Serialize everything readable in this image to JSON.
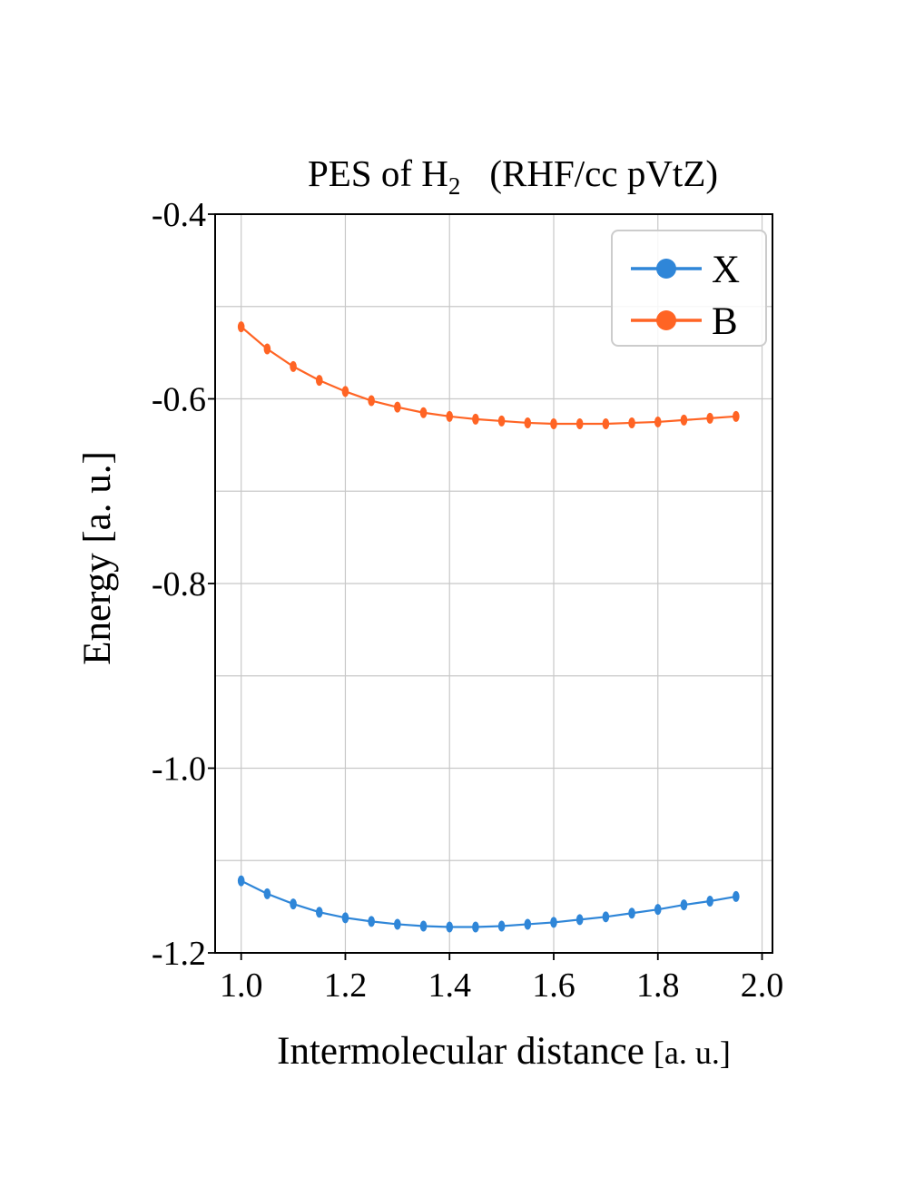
{
  "chart_data": {
    "type": "line",
    "title": {
      "prefix": "PES of H",
      "subscript": "2",
      "suffix": "(RHF/cc pVtZ)"
    },
    "xlabel": {
      "main": "Intermolecular distance",
      "unit": "[a. u.]"
    },
    "ylabel": "Energy [a. u.]",
    "xlim": [
      0.95,
      2.02
    ],
    "ylim": [
      -1.2,
      -0.4
    ],
    "xticks": [
      1.0,
      1.2,
      1.4,
      1.6,
      1.8,
      2.0
    ],
    "xtick_labels": [
      "1.0",
      "1.2",
      "1.4",
      "1.6",
      "1.8",
      "2.0"
    ],
    "yticks": [
      -1.2,
      -1.0,
      -0.8,
      -0.6,
      -0.4
    ],
    "ytick_labels": [
      "-1.2",
      "-1.0",
      "-0.8",
      "-0.6",
      "-0.4"
    ],
    "y_minor_gridlines": [
      -1.1,
      -0.9,
      -0.7,
      -0.5
    ],
    "grid": true,
    "legend_position": "top-right",
    "x": [
      1.0,
      1.05,
      1.1,
      1.15,
      1.2,
      1.25,
      1.3,
      1.35,
      1.4,
      1.45,
      1.5,
      1.55,
      1.6,
      1.65,
      1.7,
      1.75,
      1.8,
      1.85,
      1.9,
      1.95
    ],
    "series": [
      {
        "name": "X",
        "color": "#2f86d8",
        "values": [
          -1.122,
          -1.136,
          -1.147,
          -1.156,
          -1.162,
          -1.166,
          -1.169,
          -1.171,
          -1.172,
          -1.172,
          -1.171,
          -1.169,
          -1.167,
          -1.164,
          -1.161,
          -1.157,
          -1.153,
          -1.148,
          -1.144,
          -1.139
        ]
      },
      {
        "name": "B",
        "color": "#ff6424",
        "values": [
          -0.522,
          -0.546,
          -0.565,
          -0.58,
          -0.592,
          -0.602,
          -0.609,
          -0.615,
          -0.619,
          -0.622,
          -0.624,
          -0.626,
          -0.627,
          -0.627,
          -0.627,
          -0.626,
          -0.625,
          -0.623,
          -0.621,
          -0.619
        ]
      }
    ]
  }
}
